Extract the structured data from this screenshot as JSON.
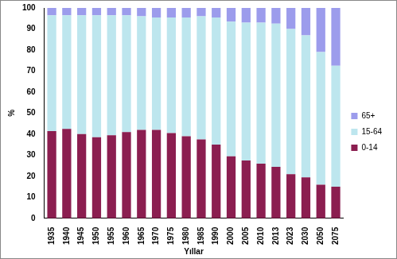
{
  "chart_data": {
    "type": "bar",
    "stacked": true,
    "xlabel": "Yıllar",
    "ylabel": "%",
    "categories": [
      "1935",
      "1940",
      "1945",
      "1950",
      "1955",
      "1960",
      "1965",
      "1970",
      "1975",
      "1980",
      "1985",
      "1990",
      "2000",
      "2005",
      "2010",
      "2013",
      "2023",
      "2030",
      "2050",
      "2075"
    ],
    "series": [
      {
        "name": "0-14",
        "color": "#8b1e50",
        "values": [
          41.5,
          42.5,
          40,
          38.5,
          39.5,
          41,
          42,
          42,
          40.5,
          39,
          37.5,
          35,
          29.5,
          27.5,
          26,
          24.5,
          21,
          19.5,
          16,
          15
        ]
      },
      {
        "name": "15-64",
        "color": "#bde6ee",
        "values": [
          55,
          54,
          56.5,
          58,
          57,
          55.5,
          54,
          53.5,
          55,
          56.5,
          58.5,
          60.5,
          64,
          65.5,
          67,
          68,
          69,
          67.5,
          63,
          57.5
        ]
      },
      {
        "name": "65+",
        "color": "#9c9cec",
        "values": [
          3.5,
          3.5,
          3.5,
          3.5,
          3.5,
          3.5,
          4,
          4.5,
          4.5,
          4.5,
          4,
          4.5,
          6.5,
          7,
          7,
          7.5,
          10,
          13,
          21,
          27.5
        ]
      }
    ],
    "ylim": [
      0,
      100
    ],
    "yticks": [
      0,
      10,
      20,
      30,
      40,
      50,
      60,
      70,
      80,
      90,
      100
    ],
    "grid": false,
    "legend": "right"
  }
}
